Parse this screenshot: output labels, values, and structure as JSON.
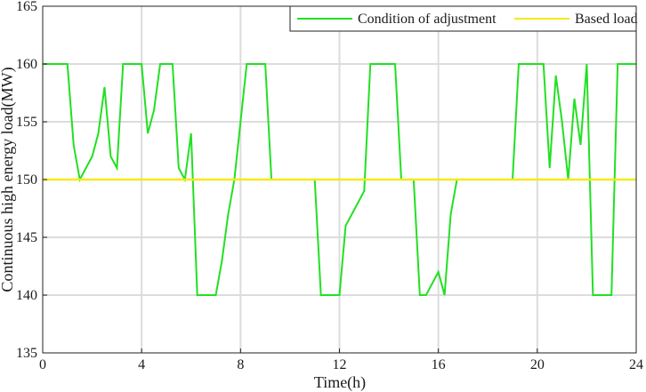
{
  "chart_data": {
    "type": "line",
    "xlabel": "Time(h)",
    "ylabel": "Continuous high energy load(MW)",
    "xlim": [
      0,
      24
    ],
    "ylim": [
      135,
      165
    ],
    "xticks": [
      0,
      4,
      8,
      12,
      16,
      20,
      24
    ],
    "yticks": [
      135,
      140,
      145,
      150,
      155,
      160,
      165
    ],
    "grid": true,
    "legend_position": "top-right",
    "series": [
      {
        "name": "Condition of adjustment",
        "color": "#22e022",
        "points": [
          [
            0,
            160
          ],
          [
            1,
            160
          ],
          [
            1.25,
            153
          ],
          [
            1.5,
            150
          ],
          [
            2,
            152
          ],
          [
            2.25,
            154
          ],
          [
            2.5,
            158
          ],
          [
            2.75,
            152
          ],
          [
            3,
            151
          ],
          [
            3.25,
            160
          ],
          [
            4,
            160
          ],
          [
            4.25,
            154
          ],
          [
            4.5,
            156
          ],
          [
            4.75,
            160
          ],
          [
            5.25,
            160
          ],
          [
            5.5,
            151
          ],
          [
            5.75,
            150
          ],
          [
            6,
            154
          ],
          [
            6.25,
            140
          ],
          [
            7,
            140
          ],
          [
            7.25,
            143
          ],
          [
            7.5,
            147
          ],
          [
            7.75,
            150
          ],
          [
            8.25,
            160
          ],
          [
            9,
            160
          ],
          [
            9.25,
            150
          ],
          [
            11,
            150
          ],
          [
            11.25,
            140
          ],
          [
            12,
            140
          ],
          [
            12.25,
            146
          ],
          [
            13,
            149
          ],
          [
            13.25,
            160
          ],
          [
            14.25,
            160
          ],
          [
            14.5,
            150
          ],
          [
            15,
            150
          ],
          [
            15.25,
            140
          ],
          [
            15.5,
            140
          ],
          [
            16,
            142
          ],
          [
            16.25,
            140
          ],
          [
            16.5,
            147
          ],
          [
            16.75,
            150
          ],
          [
            19,
            150
          ],
          [
            19.25,
            160
          ],
          [
            20.25,
            160
          ],
          [
            20.5,
            151
          ],
          [
            20.75,
            159
          ],
          [
            21,
            155
          ],
          [
            21.25,
            150
          ],
          [
            21.5,
            157
          ],
          [
            21.75,
            153
          ],
          [
            22,
            160
          ],
          [
            22.25,
            140
          ],
          [
            23,
            140
          ],
          [
            23.25,
            160
          ],
          [
            24,
            160
          ]
        ]
      },
      {
        "name": "Based load",
        "color": "#f2ea1c",
        "points": [
          [
            0,
            150
          ],
          [
            24,
            150
          ]
        ]
      }
    ]
  }
}
